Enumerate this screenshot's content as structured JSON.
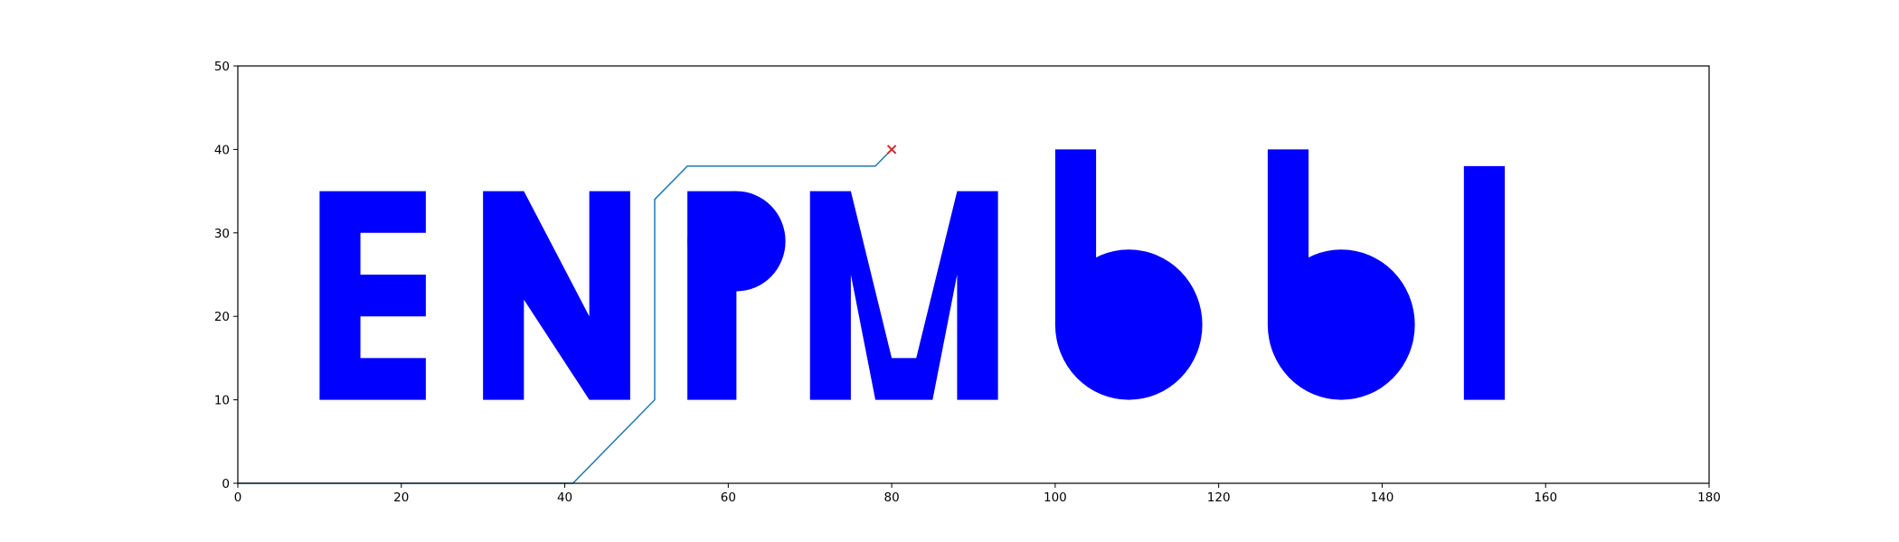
{
  "chart_data": {
    "type": "line",
    "title": "",
    "xlabel": "",
    "ylabel": "",
    "xlim": [
      0,
      180
    ],
    "ylim": [
      0,
      50
    ],
    "xticks": [
      0,
      20,
      40,
      60,
      80,
      100,
      120,
      140,
      160,
      180
    ],
    "yticks": [
      0,
      10,
      20,
      30,
      40,
      50
    ],
    "grid": false,
    "legend": "none",
    "obstacle_color": "#0000ff",
    "path_color": "#1f77b4",
    "goal_color": "#d62728",
    "obstacles": [
      {
        "id": "E",
        "kind": "polygon",
        "points": [
          [
            10,
            10
          ],
          [
            23,
            10
          ],
          [
            23,
            15
          ],
          [
            15,
            15
          ],
          [
            15,
            20
          ],
          [
            23,
            20
          ],
          [
            23,
            25
          ],
          [
            15,
            25
          ],
          [
            15,
            30
          ],
          [
            23,
            30
          ],
          [
            23,
            35
          ],
          [
            10,
            35
          ]
        ]
      },
      {
        "id": "N",
        "kind": "polygon",
        "points": [
          [
            30,
            10
          ],
          [
            35,
            10
          ],
          [
            35,
            22
          ],
          [
            43,
            10
          ],
          [
            48,
            10
          ],
          [
            48,
            35
          ],
          [
            43,
            35
          ],
          [
            43,
            20
          ],
          [
            35,
            35
          ],
          [
            30,
            35
          ]
        ]
      },
      {
        "id": "P-stem",
        "kind": "polygon",
        "points": [
          [
            55,
            10
          ],
          [
            61,
            10
          ],
          [
            61,
            35
          ],
          [
            55,
            35
          ]
        ]
      },
      {
        "id": "P-bowl",
        "kind": "circle",
        "center": [
          61,
          29
        ],
        "r": 6
      },
      {
        "id": "M",
        "kind": "polygon",
        "points": [
          [
            70,
            10
          ],
          [
            75,
            10
          ],
          [
            75,
            25
          ],
          [
            78,
            10
          ],
          [
            85,
            10
          ],
          [
            88,
            25
          ],
          [
            88,
            10
          ],
          [
            93,
            10
          ],
          [
            93,
            35
          ],
          [
            88,
            35
          ],
          [
            83,
            15
          ],
          [
            80,
            15
          ],
          [
            75,
            35
          ],
          [
            70,
            35
          ]
        ]
      },
      {
        "id": "b1-stem",
        "kind": "polygon",
        "points": [
          [
            100,
            19
          ],
          [
            105,
            19
          ],
          [
            105,
            40
          ],
          [
            100,
            40
          ]
        ]
      },
      {
        "id": "b1-bowl",
        "kind": "circle",
        "center": [
          109,
          19
        ],
        "r": 9
      },
      {
        "id": "b2-stem",
        "kind": "polygon",
        "points": [
          [
            126,
            19
          ],
          [
            131,
            19
          ],
          [
            131,
            40
          ],
          [
            126,
            40
          ]
        ]
      },
      {
        "id": "b2-bowl",
        "kind": "circle",
        "center": [
          135,
          19
        ],
        "r": 9
      },
      {
        "id": "bar",
        "kind": "polygon",
        "points": [
          [
            150,
            10
          ],
          [
            155,
            10
          ],
          [
            155,
            38
          ],
          [
            150,
            38
          ]
        ]
      }
    ],
    "path": {
      "x": [
        0,
        41,
        51,
        51,
        55,
        78,
        80
      ],
      "y": [
        0,
        0,
        10,
        34,
        38,
        38,
        40
      ]
    },
    "goal": {
      "x": 80,
      "y": 40,
      "marker": "x"
    }
  }
}
